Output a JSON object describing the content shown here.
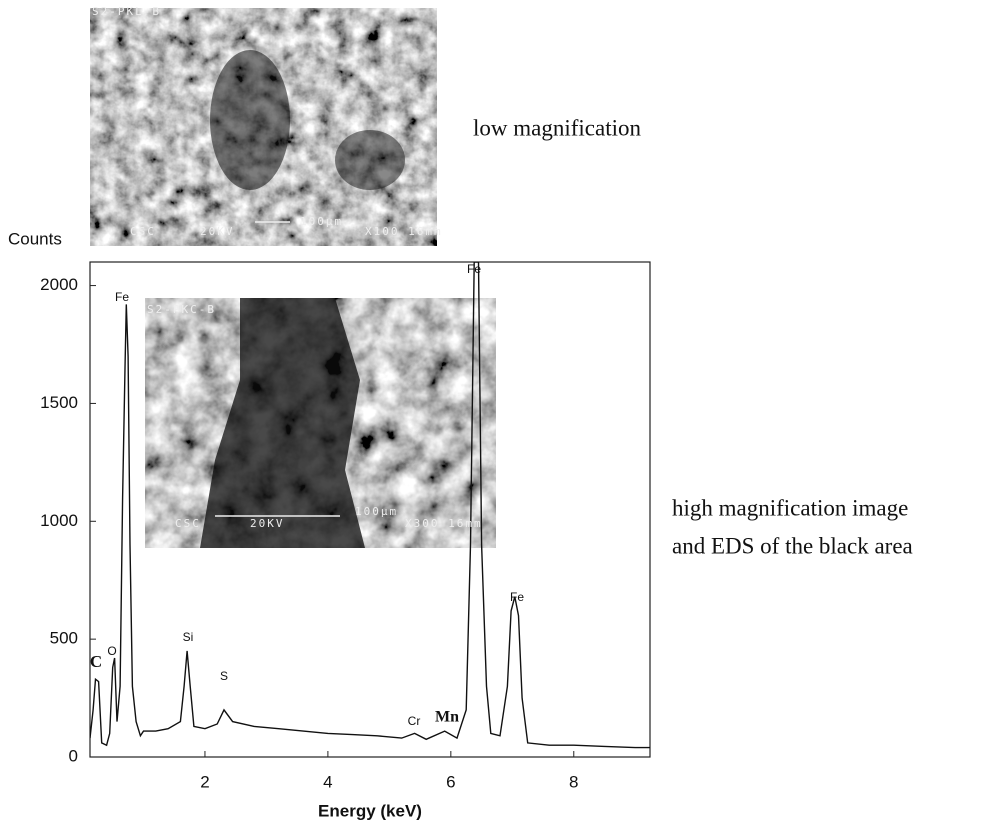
{
  "chart_data": {
    "type": "line",
    "ylabel": "Counts",
    "xlabel": "Energy (keV)",
    "xlim": [
      0.13,
      9.24
    ],
    "ylim": [
      0,
      2100
    ],
    "xticks": [
      2,
      4,
      6,
      8
    ],
    "yticks": [
      0,
      500,
      1000,
      1500,
      2000
    ],
    "series": [
      {
        "color": "#111111",
        "x": [
          0.13,
          0.18,
          0.22,
          0.27,
          0.32,
          0.4,
          0.45,
          0.5,
          0.53,
          0.57,
          0.62,
          0.66,
          0.7,
          0.72,
          0.75,
          0.78,
          0.82,
          0.88,
          0.95,
          1.0,
          1.2,
          1.4,
          1.6,
          1.66,
          1.71,
          1.76,
          1.82,
          2.0,
          2.2,
          2.31,
          2.45,
          2.8,
          3.2,
          3.6,
          4.0,
          4.4,
          4.8,
          5.2,
          5.41,
          5.6,
          5.9,
          6.1,
          6.25,
          6.32,
          6.38,
          6.45,
          6.5,
          6.58,
          6.65,
          6.8,
          6.92,
          6.98,
          7.04,
          7.1,
          7.16,
          7.25,
          7.6,
          8.0,
          8.5,
          9.0,
          9.24
        ],
        "values": [
          80,
          200,
          330,
          320,
          60,
          50,
          100,
          380,
          420,
          150,
          300,
          1100,
          1650,
          1920,
          1700,
          900,
          300,
          150,
          90,
          110,
          110,
          120,
          150,
          300,
          450,
          300,
          130,
          120,
          140,
          200,
          150,
          130,
          120,
          110,
          100,
          95,
          90,
          80,
          100,
          75,
          110,
          80,
          200,
          900,
          2100,
          2100,
          900,
          300,
          100,
          90,
          300,
          620,
          680,
          600,
          250,
          60,
          50,
          50,
          45,
          40,
          40
        ]
      }
    ],
    "annotations": [
      "C",
      "O",
      "Fe",
      "Si",
      "S",
      "Cr",
      "Mn",
      "Fe",
      "Fe"
    ]
  },
  "captions": [
    "low magnification",
    "high magnification image",
    "and EDS of the black area"
  ],
  "sem_images": [
    {
      "labels": [
        "S2-PKL-B",
        "100µm",
        "CSC",
        "20KV",
        "X100 16mm"
      ]
    },
    {
      "labels": [
        "S2-PKC-B",
        "100µm",
        "CSC",
        "20KV",
        "X300 16mm"
      ]
    }
  ]
}
